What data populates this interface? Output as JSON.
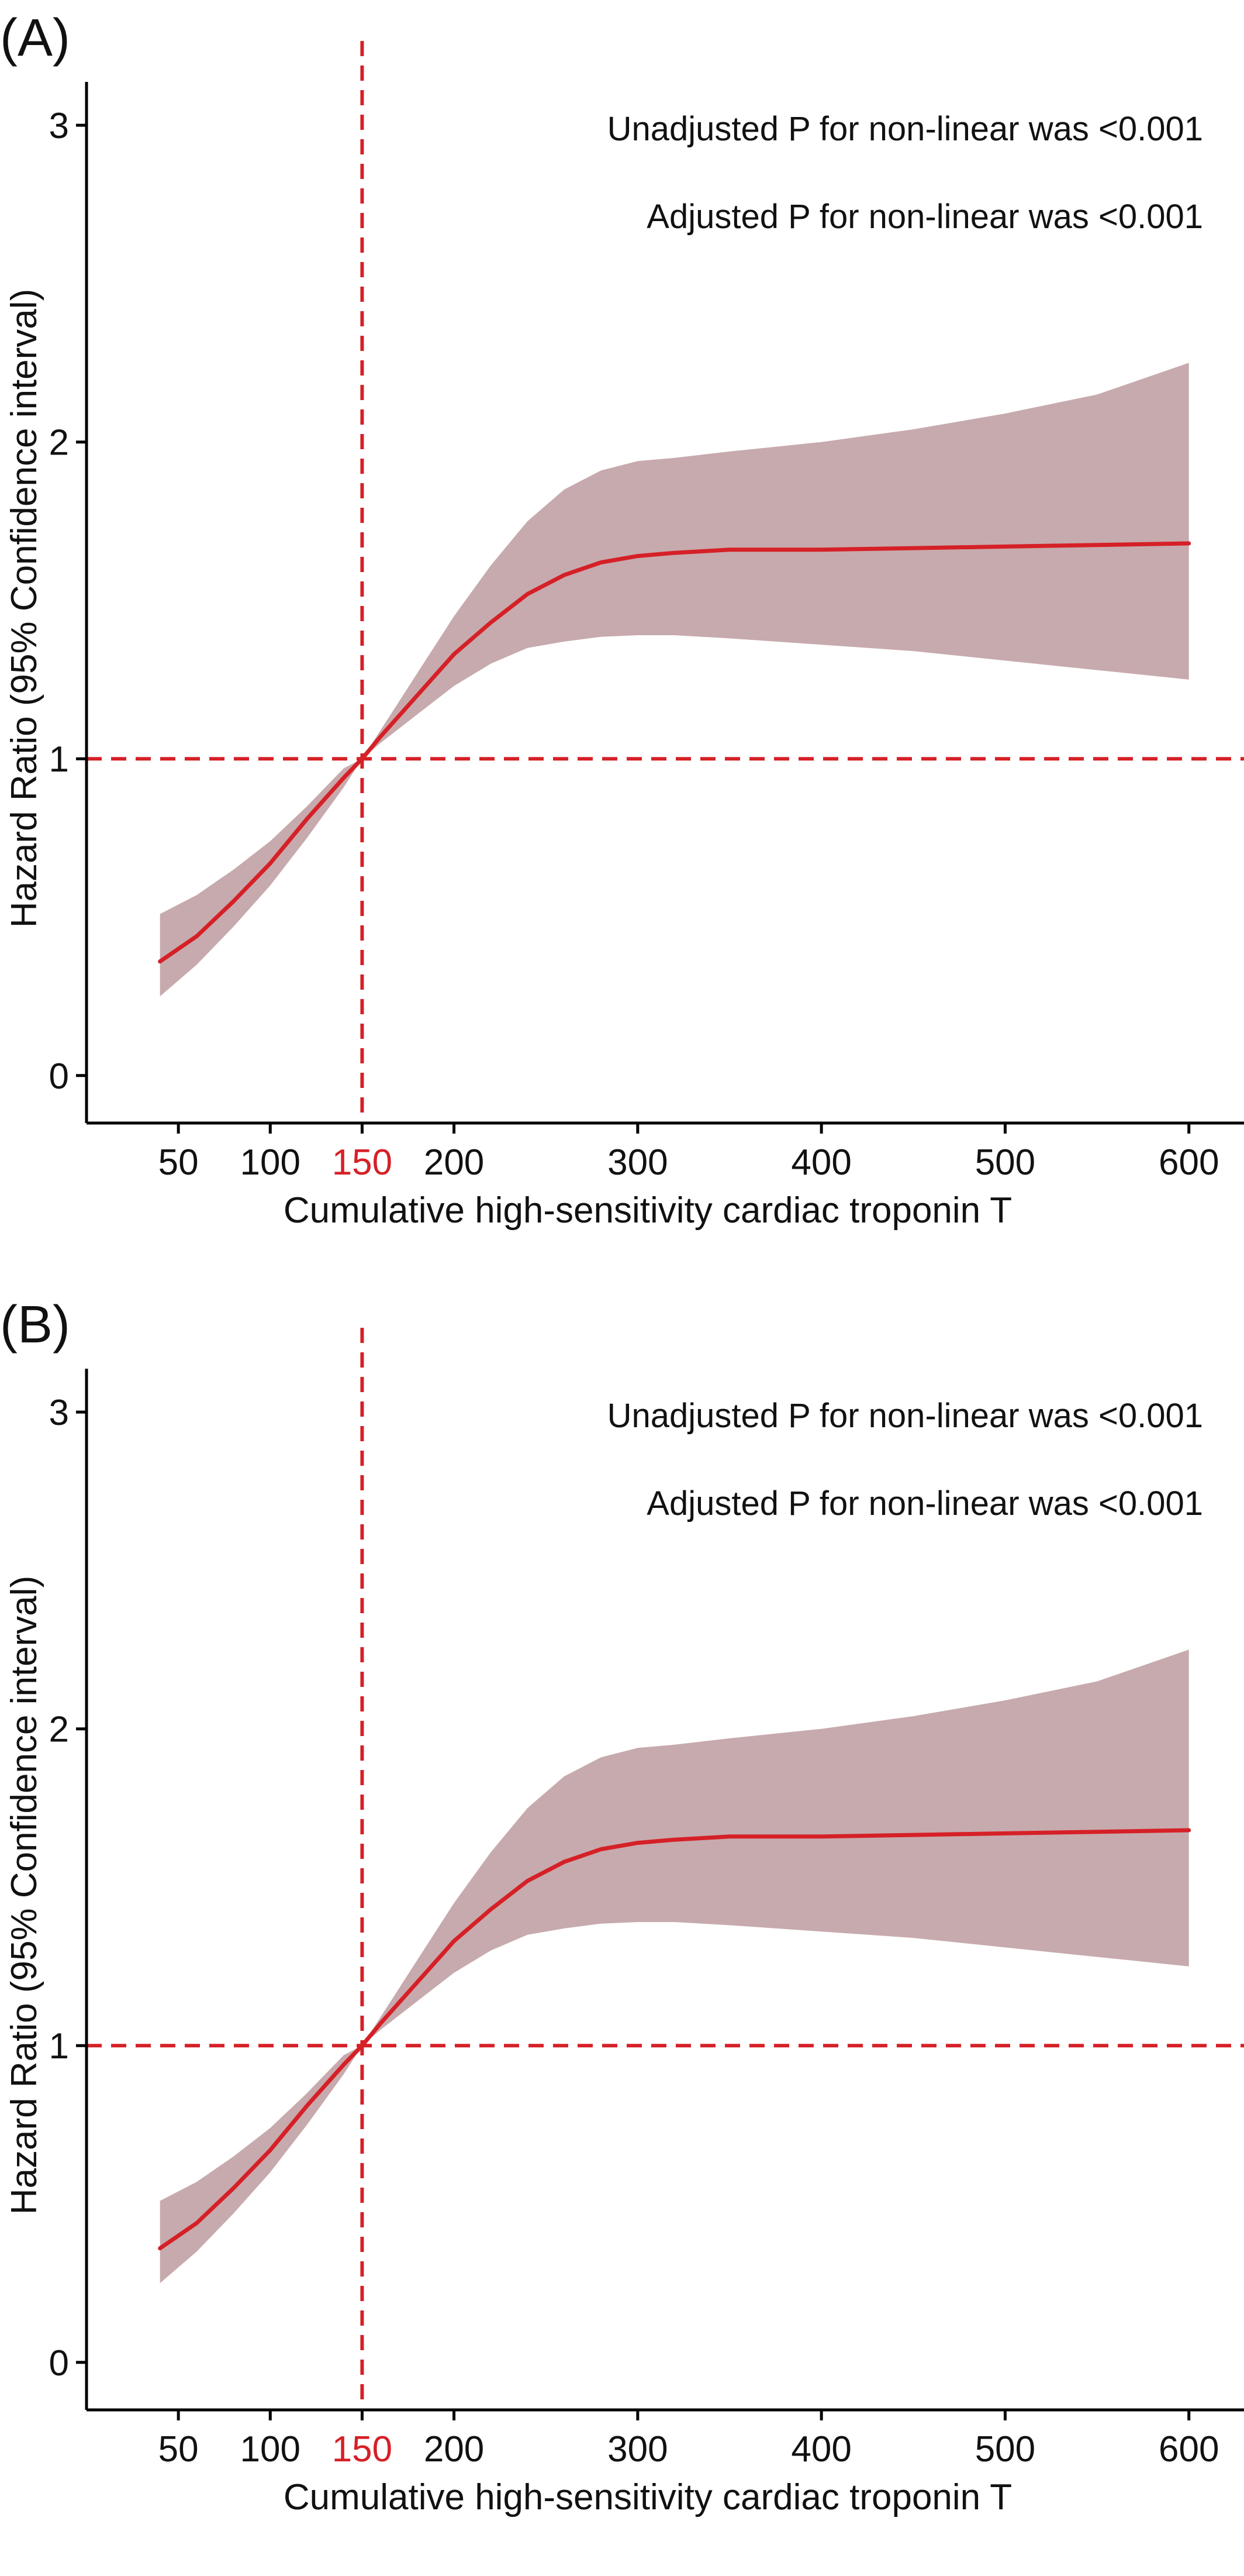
{
  "colors": {
    "line": "#d62027",
    "ribbon": "#c7aaad",
    "reference": "#d62027",
    "axis": "#000000",
    "highlight_tick": "#d62027"
  },
  "chart_data": [
    {
      "type": "line",
      "panel_label": "(A)",
      "annotations": [
        "Unadjusted P for non-linear was <0.001",
        "Adjusted P for non-linear was <0.001"
      ],
      "xlabel": "Cumulative high-sensitivity cardiac troponin T",
      "ylabel": "Hazard Ratio (95% Confidence interval)",
      "xlim": [
        0,
        630
      ],
      "ylim": [
        -0.15,
        3.1
      ],
      "xticks": [
        50,
        100,
        150,
        200,
        300,
        400,
        500,
        600
      ],
      "xtick_labels": [
        "50",
        "100",
        "150",
        "200",
        "300",
        "400",
        "500",
        "600"
      ],
      "highlighted_xtick": "150",
      "yticks": [
        0,
        1,
        2,
        3
      ],
      "ytick_labels": [
        "0",
        "1",
        "2",
        "3"
      ],
      "reference_lines": {
        "x": 150,
        "y": 1,
        "style": "dashed"
      },
      "grid": false,
      "series": [
        {
          "x": [
            40,
            60,
            80,
            100,
            120,
            140,
            150,
            160,
            180,
            200,
            220,
            240,
            260,
            280,
            300,
            320,
            350,
            400,
            450,
            500,
            550,
            600
          ],
          "y": [
            0.36,
            0.44,
            0.55,
            0.67,
            0.81,
            0.94,
            1.0,
            1.07,
            1.2,
            1.33,
            1.43,
            1.52,
            1.58,
            1.62,
            1.64,
            1.65,
            1.66,
            1.66,
            1.665,
            1.67,
            1.675,
            1.68
          ],
          "lower": [
            0.25,
            0.35,
            0.47,
            0.6,
            0.75,
            0.91,
            1.0,
            1.05,
            1.14,
            1.23,
            1.3,
            1.35,
            1.37,
            1.385,
            1.39,
            1.39,
            1.38,
            1.36,
            1.34,
            1.31,
            1.28,
            1.25
          ],
          "upper": [
            0.51,
            0.57,
            0.65,
            0.74,
            0.85,
            0.97,
            1.0,
            1.09,
            1.27,
            1.45,
            1.61,
            1.75,
            1.85,
            1.91,
            1.94,
            1.95,
            1.97,
            2.0,
            2.04,
            2.09,
            2.15,
            2.25
          ]
        }
      ]
    },
    {
      "type": "line",
      "panel_label": "(B)",
      "annotations": [
        "Unadjusted P for non-linear was <0.001",
        "Adjusted P for non-linear was <0.001"
      ],
      "xlabel": "Cumulative high-sensitivity cardiac troponin T",
      "ylabel": "Hazard Ratio (95% Confidence interval)",
      "xlim": [
        0,
        630
      ],
      "ylim": [
        -0.15,
        3.1
      ],
      "xticks": [
        50,
        100,
        150,
        200,
        300,
        400,
        500,
        600
      ],
      "xtick_labels": [
        "50",
        "100",
        "150",
        "200",
        "300",
        "400",
        "500",
        "600"
      ],
      "highlighted_xtick": "150",
      "yticks": [
        0,
        1,
        2,
        3
      ],
      "ytick_labels": [
        "0",
        "1",
        "2",
        "3"
      ],
      "reference_lines": {
        "x": 150,
        "y": 1,
        "style": "dashed"
      },
      "grid": false,
      "series": [
        {
          "x": [
            40,
            60,
            80,
            100,
            120,
            140,
            150,
            160,
            180,
            200,
            220,
            240,
            260,
            280,
            300,
            320,
            350,
            400,
            450,
            500,
            550,
            600
          ],
          "y": [
            0.36,
            0.44,
            0.55,
            0.67,
            0.81,
            0.94,
            1.0,
            1.07,
            1.2,
            1.33,
            1.43,
            1.52,
            1.58,
            1.62,
            1.64,
            1.65,
            1.66,
            1.66,
            1.665,
            1.67,
            1.675,
            1.68
          ],
          "lower": [
            0.25,
            0.35,
            0.47,
            0.6,
            0.75,
            0.91,
            1.0,
            1.05,
            1.14,
            1.23,
            1.3,
            1.35,
            1.37,
            1.385,
            1.39,
            1.39,
            1.38,
            1.36,
            1.34,
            1.31,
            1.28,
            1.25
          ],
          "upper": [
            0.51,
            0.57,
            0.65,
            0.74,
            0.85,
            0.97,
            1.0,
            1.09,
            1.27,
            1.45,
            1.61,
            1.75,
            1.85,
            1.91,
            1.94,
            1.95,
            1.97,
            2.0,
            2.04,
            2.09,
            2.15,
            2.25
          ]
        }
      ]
    }
  ]
}
